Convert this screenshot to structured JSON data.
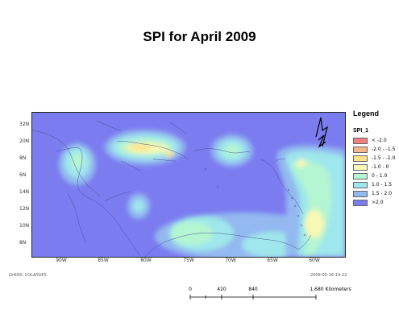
{
  "title": "SPI for April 2009",
  "legend": {
    "title": "Legend",
    "field": "SPI_1",
    "items": [
      {
        "label": "< -2.0",
        "color": "#f08080"
      },
      {
        "label": "-2.0 - -1.5",
        "color": "#f6b78a"
      },
      {
        "label": "-1.5 - -1.0",
        "color": "#fbe38c"
      },
      {
        "label": "-1.0 - 0",
        "color": "#f7f8b4"
      },
      {
        "label": "0 - 1.0",
        "color": "#b4f5d2"
      },
      {
        "label": "1.0 - 1.5",
        "color": "#9fe7ec"
      },
      {
        "label": "1.5 - 2.0",
        "color": "#93b9f0"
      },
      {
        "label": ">2.0",
        "color": "#7b7cf0"
      }
    ]
  },
  "lat_labels": [
    "32N",
    "20N",
    "8N",
    "6N",
    "14N",
    "12N",
    "10N",
    "8N"
  ],
  "lon_labels": [
    "90W",
    "85W",
    "80W",
    "75W",
    "70W",
    "65W",
    "60W"
  ],
  "credit": "GrADS: COLA/IGES",
  "timestamp": "2009-05-16-14:22",
  "north_arrow": "N",
  "scale": {
    "ticks": [
      "0",
      "420",
      "840"
    ],
    "end_label": "1,680 Kilometers"
  }
}
